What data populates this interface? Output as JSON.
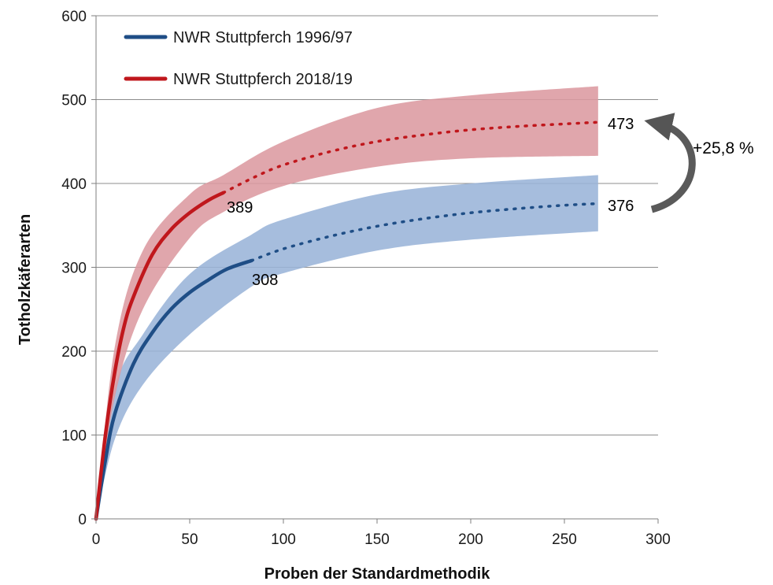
{
  "chart_data": {
    "type": "line",
    "xlabel": "Proben der Standardmethodik",
    "ylabel": "Totholzkäferarten",
    "xlim": [
      0,
      300
    ],
    "ylim": [
      0,
      600
    ],
    "xticks": [
      0,
      50,
      100,
      150,
      200,
      250,
      300
    ],
    "yticks": [
      0,
      100,
      200,
      300,
      400,
      500,
      600
    ],
    "grid": "horizontal",
    "legend_position": "top-left",
    "colors": {
      "series_1996": "#1f4e86",
      "series_2018": "#c0171c",
      "band_1996": "#9ab4d8",
      "band_2018": "#dc9aa0",
      "arrow": "#555555"
    },
    "series": [
      {
        "name": "NWR Stuttpferch 1996/97",
        "color": "#1f4e86",
        "observed": {
          "x": [
            0,
            5,
            10,
            20,
            30,
            40,
            50,
            60,
            70,
            83
          ],
          "y": [
            0,
            70,
            125,
            185,
            222,
            250,
            270,
            285,
            298,
            308
          ]
        },
        "extrapolated": {
          "x": [
            83,
            100,
            125,
            150,
            175,
            200,
            225,
            250,
            268
          ],
          "y": [
            308,
            322,
            337,
            349,
            358,
            365,
            370,
            374,
            376
          ]
        },
        "band_lower": {
          "x": [
            0,
            10,
            25,
            50,
            83,
            100,
            150,
            200,
            268
          ],
          "y": [
            0,
            95,
            160,
            220,
            277,
            293,
            320,
            333,
            343
          ]
        },
        "band_upper": {
          "x": [
            0,
            10,
            25,
            50,
            83,
            100,
            150,
            200,
            268
          ],
          "y": [
            0,
            155,
            220,
            292,
            339,
            357,
            387,
            400,
            410
          ]
        },
        "end_label": "308",
        "final_label": "376"
      },
      {
        "name": "NWR Stuttpferch 2018/19",
        "color": "#c0171c",
        "observed": {
          "x": [
            0,
            5,
            10,
            15,
            20,
            30,
            40,
            50,
            60,
            68
          ],
          "y": [
            0,
            100,
            175,
            230,
            265,
            315,
            345,
            365,
            380,
            389
          ]
        },
        "extrapolated": {
          "x": [
            68,
            85,
            100,
            125,
            150,
            175,
            200,
            225,
            250,
            268
          ],
          "y": [
            389,
            408,
            422,
            438,
            450,
            458,
            464,
            468,
            471,
            473
          ]
        },
        "band_lower": {
          "x": [
            0,
            10,
            25,
            50,
            68,
            100,
            150,
            200,
            268
          ],
          "y": [
            0,
            145,
            250,
            335,
            366,
            397,
            420,
            430,
            433
          ]
        },
        "band_upper": {
          "x": [
            0,
            10,
            25,
            50,
            68,
            100,
            150,
            200,
            268
          ],
          "y": [
            0,
            205,
            320,
            387,
            410,
            450,
            490,
            505,
            516
          ]
        },
        "end_label": "389",
        "final_label": "473"
      }
    ],
    "annotation": {
      "text": "+25,8 %",
      "from_value": 376,
      "to_value": 473
    }
  }
}
